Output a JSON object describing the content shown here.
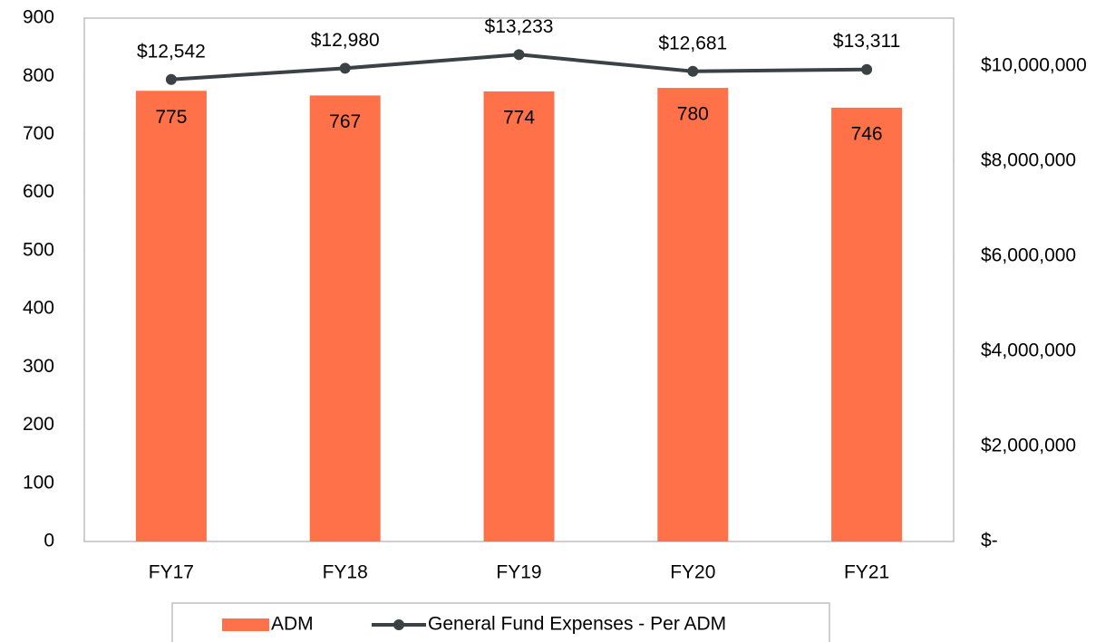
{
  "chart_data": {
    "type": "bar_line",
    "categories": [
      "FY17",
      "FY18",
      "FY19",
      "FY20",
      "FY21"
    ],
    "series": [
      {
        "name": "ADM",
        "type": "bar",
        "color": "#ff7148",
        "values": [
          775,
          767,
          774,
          780,
          746
        ]
      },
      {
        "name": "General Fund Expenses - Per ADM",
        "type": "line",
        "axis": "y2",
        "color": "#3b4245",
        "values": [
          9720000,
          9956000,
          10242000,
          9891000,
          9930000
        ]
      }
    ],
    "line_point_labels": [
      "$12,542",
      "$12,980",
      "$13,233",
      "$12,681",
      "$13,311"
    ],
    "ylim": [
      0,
      900
    ],
    "yticks": [
      0,
      100,
      200,
      300,
      400,
      500,
      600,
      700,
      800,
      900
    ],
    "y2lim": [
      0,
      11010000
    ],
    "y2ticks": [
      {
        "value": 0,
        "label": "$-"
      },
      {
        "value": 2000000,
        "label": "$2,000,000"
      },
      {
        "value": 4000000,
        "label": "$4,000,000"
      },
      {
        "value": 6000000,
        "label": "$6,000,000"
      },
      {
        "value": 8000000,
        "label": "$8,000,000"
      },
      {
        "value": 10000000,
        "label": "$10,000,000"
      }
    ],
    "legend": "bottom"
  }
}
